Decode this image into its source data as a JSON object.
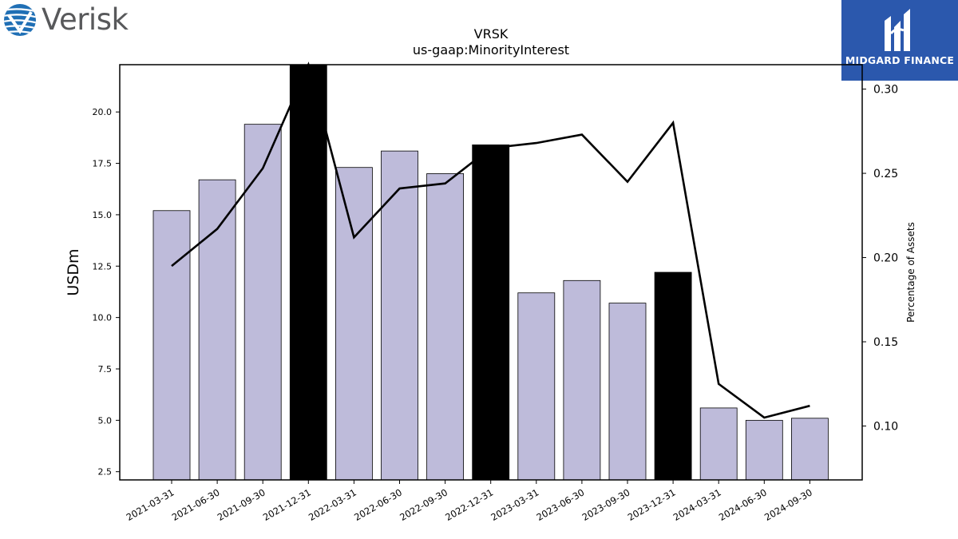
{
  "logos": {
    "left_text": "Verisk",
    "right_text": "MIDGARD FINANCE"
  },
  "chart_data": {
    "type": "bar",
    "title": "VRSK",
    "subtitle": "us-gaap:MinorityInterest",
    "ylabel": "USDm",
    "y2label": "Percentage of Assets",
    "categories": [
      "2021-03-31",
      "2021-06-30",
      "2021-09-30",
      "2021-12-31",
      "2022-03-31",
      "2022-06-30",
      "2022-09-30",
      "2022-12-31",
      "2023-03-31",
      "2023-06-30",
      "2023-09-30",
      "2023-12-31",
      "2024-03-31",
      "2024-06-30",
      "2024-09-30"
    ],
    "series": [
      {
        "type": "bar",
        "values": [
          15.2,
          16.7,
          19.4,
          22.6,
          17.3,
          18.1,
          17.0,
          18.4,
          11.2,
          11.8,
          10.7,
          12.2,
          5.6,
          5.0,
          5.1
        ],
        "highlight": [
          false,
          false,
          false,
          true,
          false,
          false,
          false,
          true,
          false,
          false,
          false,
          true,
          false,
          false,
          false
        ],
        "color": "#bebbda",
        "highlight_color": "#000000"
      },
      {
        "type": "line",
        "axis": "right",
        "values": [
          0.195,
          0.217,
          0.253,
          0.315,
          0.212,
          0.241,
          0.244,
          0.265,
          0.268,
          0.273,
          0.245,
          0.28,
          0.125,
          0.105,
          0.112
        ],
        "color": "#000000"
      }
    ],
    "ylim": [
      2.1,
      22.3
    ],
    "y2lim": [
      0.068,
      0.3145
    ],
    "yticks": [
      "2.5",
      "5.0",
      "7.5",
      "10.0",
      "12.5",
      "15.0",
      "17.5",
      "20.0"
    ],
    "y2ticks": [
      "0.10",
      "0.15",
      "0.20",
      "0.25",
      "0.30"
    ],
    "grid": false,
    "legend": "none"
  }
}
